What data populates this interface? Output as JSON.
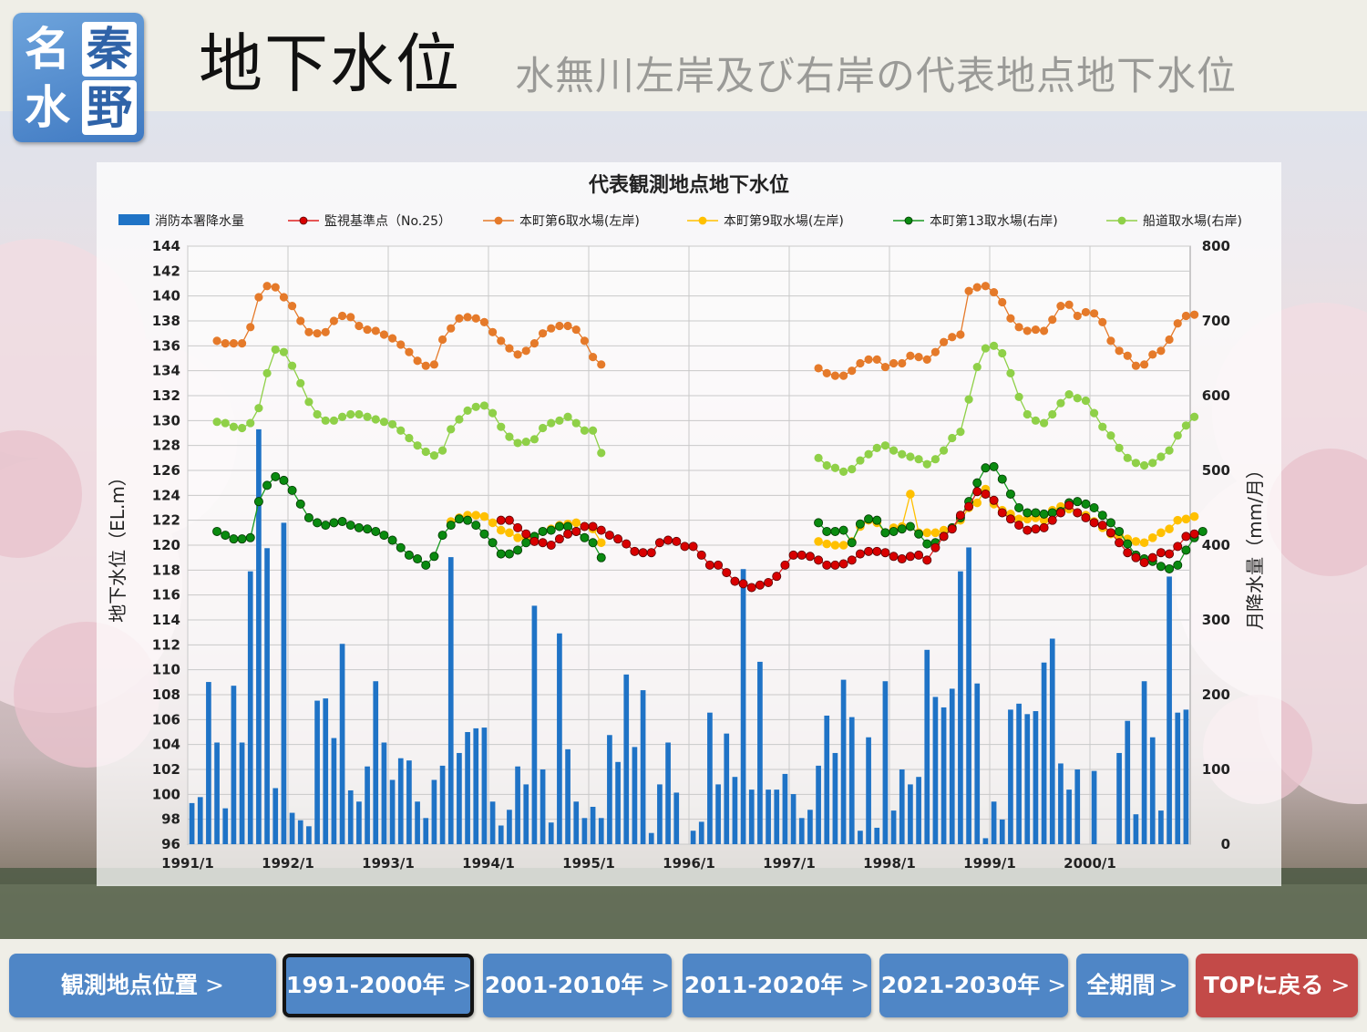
{
  "header": {
    "logo_chars": [
      "名",
      "秦",
      "水",
      "野"
    ],
    "title": "地下水位",
    "subtitle": "水無川左岸及び右岸の代表地点地下水位"
  },
  "nav": {
    "items": [
      {
        "label": "観測地点位置",
        "active": false
      },
      {
        "label": "1991-2000年",
        "active": true
      },
      {
        "label": "2001-2010年",
        "active": false
      },
      {
        "label": "2011-2020年",
        "active": false
      },
      {
        "label": "2021-2030年",
        "active": false
      },
      {
        "label": "全期間",
        "active": false
      },
      {
        "label": "TOPに戻る",
        "active": false
      }
    ],
    "chevron": ">"
  },
  "colors": {
    "rain": "#1f73c6",
    "no25": "#e02020",
    "no25_marker": "#d80000",
    "s6": "#e57a2a",
    "s9": "#ffc000",
    "s13": "#1a9a22",
    "s13_marker": "#0a8a10",
    "funado": "#8fd048",
    "nav_button": "#4f86c6",
    "nav_top": "#c34a48"
  },
  "chart_data": {
    "type": "line",
    "title": "代表観測地点地下水位",
    "ylabel": "地下水位（EL.m）",
    "y2label": "月降水量（mm/月）",
    "ylim": [
      96,
      144
    ],
    "yticks": [
      96,
      98,
      100,
      102,
      104,
      106,
      108,
      110,
      112,
      114,
      116,
      118,
      120,
      122,
      124,
      126,
      128,
      130,
      132,
      134,
      136,
      138,
      140,
      142,
      144
    ],
    "y2lim": [
      0,
      800
    ],
    "y2ticks": [
      0,
      100,
      200,
      300,
      400,
      500,
      600,
      700,
      800
    ],
    "xlim": [
      "1991/1",
      "2001/1"
    ],
    "xticks": [
      "1991/1",
      "1992/1",
      "1993/1",
      "1994/1",
      "1995/1",
      "1996/1",
      "1997/1",
      "1998/1",
      "1999/1",
      "2000/1"
    ],
    "grid": true,
    "legend_position": "top",
    "rain": {
      "name": "消防本署降水量",
      "type": "bar",
      "axis": "y2",
      "values": [
        55,
        63,
        217,
        136,
        48,
        212,
        136,
        365,
        555,
        396,
        75,
        430,
        42,
        32,
        24,
        192,
        195,
        142,
        268,
        72,
        57,
        104,
        218,
        136,
        86,
        115,
        112,
        57,
        35,
        86,
        105,
        384,
        122,
        150,
        155,
        156,
        57,
        25,
        46,
        104,
        80,
        319,
        100,
        29,
        282,
        127,
        57,
        35,
        50,
        35,
        146,
        110,
        227,
        130,
        206,
        15,
        80,
        136,
        69,
        0,
        18,
        30,
        176,
        80,
        148,
        90,
        368,
        73,
        244,
        73,
        73,
        94,
        67,
        35,
        46,
        105,
        172,
        122,
        220,
        170,
        18,
        143,
        22,
        218,
        45,
        100,
        80,
        90,
        260,
        197,
        183,
        208,
        365,
        397,
        215,
        8,
        57,
        33,
        180,
        188,
        174,
        178,
        243,
        275,
        108,
        73,
        100,
        0,
        98,
        0,
        0,
        122,
        165,
        40,
        218,
        143,
        45,
        358,
        176,
        180,
        10
      ]
    },
    "series": [
      {
        "name": "監視基準点（No.25）",
        "axis": "y",
        "start_month": 0,
        "values": [
          null,
          null,
          null,
          null,
          null,
          null,
          null,
          null,
          null,
          null,
          null,
          null,
          null,
          null,
          null,
          null,
          null,
          null,
          null,
          null,
          null,
          null,
          null,
          null,
          null,
          null,
          null,
          null,
          null,
          null,
          null,
          null,
          null,
          null,
          null,
          null,
          null,
          122.0,
          122.0,
          121.4,
          120.9,
          120.3,
          120.2,
          120.0,
          120.5,
          120.9,
          121.1,
          121.5,
          121.5,
          121.2,
          120.8,
          120.5,
          120.1,
          119.5,
          119.4,
          119.4,
          120.2,
          120.4,
          120.3,
          119.9,
          119.9,
          119.2,
          118.4,
          118.4,
          117.8,
          117.1,
          116.9,
          116.6,
          116.8,
          117.0,
          117.5,
          118.4,
          119.2,
          119.2,
          119.1,
          118.8,
          118.4,
          118.4,
          118.5,
          118.8,
          119.3,
          119.5,
          119.5,
          119.4,
          119.1,
          118.9,
          119.1,
          119.2,
          118.8,
          119.8,
          120.7,
          121.3,
          122.4,
          123.1,
          124.3,
          124.1,
          123.6,
          122.6,
          122.1,
          121.6,
          121.2,
          121.3,
          121.4,
          122.0,
          122.6,
          123.2,
          122.6,
          122.2,
          121.8,
          121.6,
          121.0,
          120.2,
          119.4,
          119.0,
          118.6,
          119.0,
          119.4,
          119.3,
          119.9,
          120.7,
          120.9
        ]
      },
      {
        "name": "本町第6取水場(左岸)",
        "axis": "y",
        "start_month": 0,
        "values": [
          null,
          null,
          null,
          136.4,
          136.2,
          136.2,
          136.2,
          137.5,
          139.9,
          140.8,
          140.7,
          139.9,
          139.2,
          138.0,
          137.1,
          137.0,
          137.1,
          138.0,
          138.4,
          138.3,
          137.6,
          137.3,
          137.2,
          136.9,
          136.6,
          136.1,
          135.5,
          134.8,
          134.4,
          134.5,
          136.5,
          137.4,
          138.2,
          138.3,
          138.2,
          137.9,
          137.1,
          136.4,
          135.8,
          135.3,
          135.6,
          136.2,
          137.0,
          137.4,
          137.6,
          137.6,
          137.3,
          136.4,
          135.1,
          134.5,
          null,
          null,
          null,
          null,
          null,
          null,
          null,
          null,
          null,
          null,
          null,
          null,
          null,
          null,
          null,
          null,
          null,
          null,
          null,
          null,
          null,
          null,
          null,
          null,
          null,
          134.2,
          133.8,
          133.6,
          133.6,
          134.0,
          134.6,
          134.9,
          134.9,
          134.3,
          134.6,
          134.6,
          135.2,
          135.1,
          134.9,
          135.5,
          136.3,
          136.7,
          136.9,
          140.4,
          140.7,
          140.8,
          140.3,
          139.5,
          138.2,
          137.5,
          137.2,
          137.3,
          137.2,
          138.1,
          139.2,
          139.3,
          138.4,
          138.7,
          138.6,
          137.9,
          136.4,
          135.6,
          135.2,
          134.4,
          134.5,
          135.3,
          135.6,
          136.5,
          137.8,
          138.4,
          138.5
        ]
      },
      {
        "name": "本町第9取水場(左岸)",
        "axis": "y",
        "start_month": 0,
        "values": [
          null,
          null,
          null,
          null,
          null,
          null,
          null,
          null,
          null,
          null,
          null,
          null,
          null,
          null,
          null,
          null,
          null,
          null,
          null,
          null,
          null,
          null,
          null,
          null,
          null,
          null,
          null,
          null,
          null,
          null,
          null,
          121.9,
          122.2,
          122.4,
          122.4,
          122.3,
          121.8,
          121.2,
          121.0,
          120.6,
          120.5,
          120.6,
          121.1,
          121.3,
          121.6,
          121.7,
          121.8,
          121.5,
          121.3,
          120.2,
          null,
          null,
          null,
          null,
          null,
          null,
          null,
          null,
          null,
          null,
          null,
          null,
          null,
          null,
          null,
          null,
          null,
          null,
          null,
          null,
          null,
          null,
          null,
          null,
          null,
          120.3,
          120.1,
          120.0,
          120.0,
          120.3,
          121.5,
          122.0,
          121.8,
          121.0,
          121.4,
          121.5,
          124.1,
          121.0,
          121.0,
          121.0,
          121.2,
          121.4,
          122.0,
          123.0,
          123.4,
          124.5,
          123.3,
          122.8,
          122.5,
          122.1,
          122.1,
          122.2,
          122.0,
          122.8,
          123.1,
          122.9,
          122.6,
          122.4,
          121.9,
          121.4,
          120.9,
          120.8,
          120.5,
          120.3,
          120.2,
          120.6,
          121.0,
          121.3,
          122.0,
          122.1,
          122.3
        ]
      },
      {
        "name": "本町第13取水場(右岸)",
        "axis": "y",
        "start_month": 0,
        "values": [
          null,
          null,
          null,
          121.1,
          120.8,
          120.5,
          120.5,
          120.6,
          123.5,
          124.8,
          125.5,
          125.2,
          124.4,
          123.3,
          122.2,
          121.8,
          121.6,
          121.8,
          121.9,
          121.6,
          121.4,
          121.3,
          121.1,
          120.8,
          120.4,
          119.8,
          119.2,
          118.9,
          118.4,
          119.1,
          120.8,
          121.6,
          122.1,
          122.0,
          121.6,
          120.9,
          120.2,
          119.3,
          119.3,
          119.6,
          120.2,
          120.7,
          121.1,
          121.2,
          121.5,
          121.5,
          121.1,
          120.6,
          120.2,
          119.0,
          null,
          null,
          null,
          null,
          null,
          null,
          null,
          null,
          null,
          null,
          null,
          null,
          null,
          null,
          null,
          null,
          null,
          null,
          null,
          null,
          null,
          null,
          null,
          null,
          null,
          121.8,
          121.1,
          121.1,
          121.2,
          120.2,
          121.7,
          122.1,
          122.0,
          121.0,
          121.1,
          121.3,
          121.5,
          120.9,
          120.1,
          120.2,
          120.7,
          121.4,
          122.2,
          123.5,
          125.0,
          126.2,
          126.3,
          125.3,
          124.1,
          123.0,
          122.6,
          122.6,
          122.5,
          122.6,
          122.7,
          123.4,
          123.5,
          123.3,
          123.0,
          122.4,
          121.8,
          121.1,
          120.1,
          119.2,
          118.9,
          118.7,
          118.3,
          118.1,
          118.4,
          119.6,
          120.6,
          121.1
        ]
      },
      {
        "name": "船道取水場(右岸)",
        "axis": "y",
        "start_month": 0,
        "values": [
          null,
          null,
          null,
          129.9,
          129.8,
          129.5,
          129.4,
          129.8,
          131.0,
          133.8,
          135.7,
          135.5,
          134.4,
          133.0,
          131.5,
          130.5,
          130.0,
          130.0,
          130.3,
          130.5,
          130.5,
          130.3,
          130.1,
          129.9,
          129.7,
          129.2,
          128.6,
          128.0,
          127.5,
          127.2,
          127.6,
          129.3,
          130.1,
          130.8,
          131.1,
          131.2,
          130.6,
          129.5,
          128.7,
          128.2,
          128.3,
          128.5,
          129.4,
          129.8,
          130.0,
          130.3,
          129.8,
          129.2,
          129.2,
          127.4,
          null,
          null,
          null,
          null,
          null,
          null,
          null,
          null,
          null,
          null,
          null,
          null,
          null,
          null,
          null,
          null,
          null,
          null,
          null,
          null,
          null,
          null,
          null,
          null,
          null,
          127.0,
          126.4,
          126.2,
          125.9,
          126.1,
          126.8,
          127.3,
          127.8,
          128.0,
          127.6,
          127.3,
          127.1,
          126.9,
          126.5,
          126.9,
          127.6,
          128.6,
          129.1,
          131.7,
          134.3,
          135.8,
          136.0,
          135.4,
          133.8,
          131.9,
          130.5,
          130.0,
          129.8,
          130.5,
          131.4,
          132.1,
          131.8,
          131.6,
          130.6,
          129.5,
          128.8,
          127.8,
          127.0,
          126.6,
          126.4,
          126.6,
          127.1,
          127.6,
          128.8,
          129.6,
          130.3
        ]
      }
    ]
  }
}
